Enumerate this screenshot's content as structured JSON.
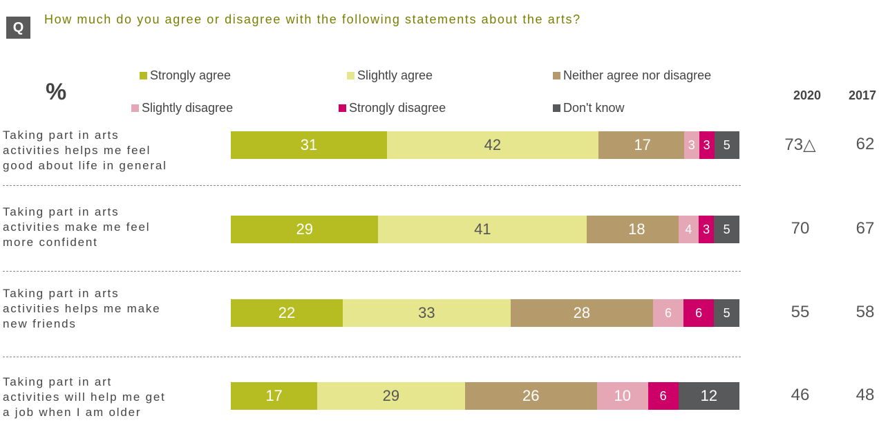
{
  "question": {
    "badge": "Q",
    "text": "How much do you agree or disagree with the following statements about the arts?"
  },
  "unit_label": "%",
  "year_headers": [
    "2020",
    "2017"
  ],
  "colors": {
    "strongly_agree": "#b5bd22",
    "slightly_agree": "#e6e68f",
    "neither": "#b59b6c",
    "slightly_disagree": "#e5a6b5",
    "strongly_disagree": "#cc0066",
    "dont_know": "#58595b"
  },
  "chart_data": {
    "type": "bar",
    "orientation": "horizontal-stacked-100",
    "legend": [
      "Strongly agree",
      "Slightly agree",
      "Neither agree nor disagree",
      "Slightly disagree",
      "Strongly disagree",
      "Don't know"
    ],
    "categories": [
      "Taking part in arts activities helps me feel good about life in general",
      "Taking part in arts activities make me feel more confident",
      "Taking part in arts activities helps me make new friends",
      "Taking part in art activities will help me get a job when I am older"
    ],
    "series": [
      {
        "name": "Strongly agree",
        "values": [
          31,
          29,
          22,
          17
        ]
      },
      {
        "name": "Slightly agree",
        "values": [
          42,
          41,
          33,
          29
        ]
      },
      {
        "name": "Neither agree nor disagree",
        "values": [
          17,
          18,
          28,
          26
        ]
      },
      {
        "name": "Slightly disagree",
        "values": [
          3,
          4,
          6,
          10
        ]
      },
      {
        "name": "Strongly disagree",
        "values": [
          3,
          3,
          6,
          6
        ]
      },
      {
        "name": "Don't know",
        "values": [
          5,
          5,
          5,
          12
        ]
      }
    ],
    "net_agree": {
      "2020": [
        "73",
        "70",
        "55",
        "46"
      ],
      "2017": [
        "62",
        "67",
        "58",
        "48"
      ]
    },
    "significance_marks": [
      "△",
      "",
      "",
      ""
    ],
    "rows": [
      {
        "label_lines": [
          "Taking part in arts",
          "activities helps me feel",
          "good about life in general"
        ]
      },
      {
        "label_lines": [
          "Taking part in arts",
          "activities make me feel",
          "more confident"
        ]
      },
      {
        "label_lines": [
          "Taking part in arts",
          "activities helps me make",
          "new friends"
        ]
      },
      {
        "label_lines": [
          "Taking part in art",
          "activities will help me get",
          "a job when I am older"
        ]
      }
    ]
  }
}
